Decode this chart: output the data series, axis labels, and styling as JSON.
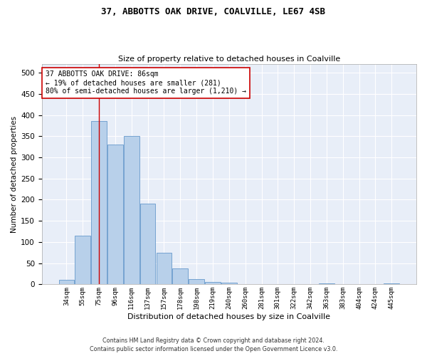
{
  "title1": "37, ABBOTTS OAK DRIVE, COALVILLE, LE67 4SB",
  "title2": "Size of property relative to detached houses in Coalville",
  "xlabel": "Distribution of detached houses by size in Coalville",
  "ylabel": "Number of detached properties",
  "bar_color": "#b8d0ea",
  "bar_edge_color": "#6699cc",
  "background_color": "#e8eef8",
  "grid_color": "#ffffff",
  "categories": [
    "34sqm",
    "55sqm",
    "75sqm",
    "96sqm",
    "116sqm",
    "137sqm",
    "157sqm",
    "178sqm",
    "198sqm",
    "219sqm",
    "240sqm",
    "260sqm",
    "281sqm",
    "301sqm",
    "322sqm",
    "342sqm",
    "363sqm",
    "383sqm",
    "404sqm",
    "424sqm",
    "445sqm"
  ],
  "values": [
    10,
    115,
    385,
    330,
    350,
    190,
    75,
    37,
    12,
    6,
    4,
    0,
    0,
    0,
    0,
    0,
    2,
    0,
    0,
    0,
    2
  ],
  "annotation_text": "37 ABBOTTS OAK DRIVE: 86sqm\n← 19% of detached houses are smaller (281)\n80% of semi-detached houses are larger (1,210) →",
  "ylim": [
    0,
    520
  ],
  "yticks": [
    0,
    50,
    100,
    150,
    200,
    250,
    300,
    350,
    400,
    450,
    500
  ],
  "footer1": "Contains HM Land Registry data © Crown copyright and database right 2024.",
  "footer2": "Contains public sector information licensed under the Open Government Licence v3.0."
}
